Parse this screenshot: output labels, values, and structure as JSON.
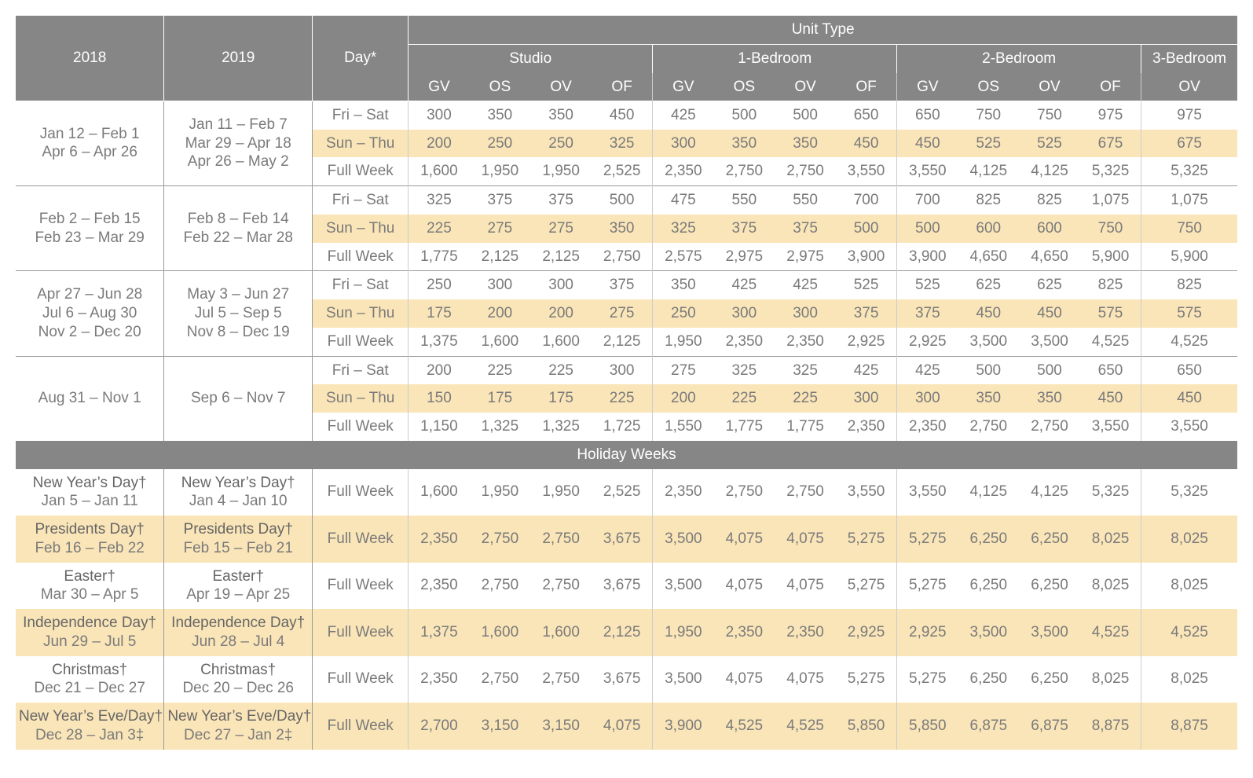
{
  "header": {
    "years": [
      "2018",
      "2019"
    ],
    "day_label": "Day*",
    "unit_type_label": "Unit Type",
    "unit_groups": [
      "Studio",
      "1-Bedroom",
      "2-Bedroom",
      "3-Bedroom"
    ],
    "view_codes": [
      "GV",
      "OS",
      "OV",
      "OF"
    ],
    "view_code_3br": "OV"
  },
  "day_labels": {
    "fri_sat": "Fri – Sat",
    "sun_thu": "Sun – Thu",
    "full_week": "Full Week"
  },
  "seasons": [
    {
      "dates_2018": [
        "Jan 12 – Feb 1",
        "Apr 6 – Apr 26"
      ],
      "dates_2019": [
        "Jan 11 – Feb 7",
        "Mar 29 – Apr 18",
        "Apr 26 – May 2"
      ],
      "rows": [
        {
          "day": "fri_sat",
          "v": [
            "300",
            "350",
            "350",
            "450",
            "425",
            "500",
            "500",
            "650",
            "650",
            "750",
            "750",
            "975",
            "975"
          ]
        },
        {
          "day": "sun_thu",
          "hl": true,
          "v": [
            "200",
            "250",
            "250",
            "325",
            "300",
            "350",
            "350",
            "450",
            "450",
            "525",
            "525",
            "675",
            "675"
          ]
        },
        {
          "day": "full_week",
          "v": [
            "1,600",
            "1,950",
            "1,950",
            "2,525",
            "2,350",
            "2,750",
            "2,750",
            "3,550",
            "3,550",
            "4,125",
            "4,125",
            "5,325",
            "5,325"
          ]
        }
      ]
    },
    {
      "dates_2018": [
        "Feb 2 – Feb 15",
        "Feb 23 – Mar 29"
      ],
      "dates_2019": [
        "Feb 8 – Feb 14",
        "Feb 22 – Mar 28"
      ],
      "rows": [
        {
          "day": "fri_sat",
          "v": [
            "325",
            "375",
            "375",
            "500",
            "475",
            "550",
            "550",
            "700",
            "700",
            "825",
            "825",
            "1,075",
            "1,075"
          ]
        },
        {
          "day": "sun_thu",
          "hl": true,
          "v": [
            "225",
            "275",
            "275",
            "350",
            "325",
            "375",
            "375",
            "500",
            "500",
            "600",
            "600",
            "750",
            "750"
          ]
        },
        {
          "day": "full_week",
          "v": [
            "1,775",
            "2,125",
            "2,125",
            "2,750",
            "2,575",
            "2,975",
            "2,975",
            "3,900",
            "3,900",
            "4,650",
            "4,650",
            "5,900",
            "5,900"
          ]
        }
      ]
    },
    {
      "dates_2018": [
        "Apr 27 – Jun 28",
        "Jul 6 – Aug 30",
        "Nov 2 – Dec 20"
      ],
      "dates_2019": [
        "May 3 – Jun 27",
        "Jul 5 – Sep 5",
        "Nov 8 – Dec 19"
      ],
      "rows": [
        {
          "day": "fri_sat",
          "v": [
            "250",
            "300",
            "300",
            "375",
            "350",
            "425",
            "425",
            "525",
            "525",
            "625",
            "625",
            "825",
            "825"
          ]
        },
        {
          "day": "sun_thu",
          "hl": true,
          "v": [
            "175",
            "200",
            "200",
            "275",
            "250",
            "300",
            "300",
            "375",
            "375",
            "450",
            "450",
            "575",
            "575"
          ]
        },
        {
          "day": "full_week",
          "v": [
            "1,375",
            "1,600",
            "1,600",
            "2,125",
            "1,950",
            "2,350",
            "2,350",
            "2,925",
            "2,925",
            "3,500",
            "3,500",
            "4,525",
            "4,525"
          ]
        }
      ]
    },
    {
      "dates_2018": [
        "Aug 31 – Nov 1"
      ],
      "dates_2019": [
        "Sep 6 – Nov 7"
      ],
      "rows": [
        {
          "day": "fri_sat",
          "v": [
            "200",
            "225",
            "225",
            "300",
            "275",
            "325",
            "325",
            "425",
            "425",
            "500",
            "500",
            "650",
            "650"
          ]
        },
        {
          "day": "sun_thu",
          "hl": true,
          "v": [
            "150",
            "175",
            "175",
            "225",
            "200",
            "225",
            "225",
            "300",
            "300",
            "350",
            "350",
            "450",
            "450"
          ]
        },
        {
          "day": "full_week",
          "v": [
            "1,150",
            "1,325",
            "1,325",
            "1,725",
            "1,550",
            "1,775",
            "1,775",
            "2,350",
            "2,350",
            "2,750",
            "2,750",
            "3,550",
            "3,550"
          ]
        }
      ]
    }
  ],
  "holiday_label": "Holiday Weeks",
  "holidays": [
    {
      "hl": false,
      "name_2018": "New Year’s Day†",
      "dates_2018": "Jan 5 – Jan 11",
      "name_2019": "New Year’s Day†",
      "dates_2019": "Jan 4 – Jan 10",
      "v": [
        "1,600",
        "1,950",
        "1,950",
        "2,525",
        "2,350",
        "2,750",
        "2,750",
        "3,550",
        "3,550",
        "4,125",
        "4,125",
        "5,325",
        "5,325"
      ]
    },
    {
      "hl": true,
      "name_2018": "Presidents Day†",
      "dates_2018": "Feb 16 – Feb 22",
      "name_2019": "Presidents Day†",
      "dates_2019": "Feb 15 – Feb 21",
      "v": [
        "2,350",
        "2,750",
        "2,750",
        "3,675",
        "3,500",
        "4,075",
        "4,075",
        "5,275",
        "5,275",
        "6,250",
        "6,250",
        "8,025",
        "8,025"
      ]
    },
    {
      "hl": false,
      "name_2018": "Easter†",
      "dates_2018": "Mar 30 – Apr 5",
      "name_2019": "Easter†",
      "dates_2019": "Apr 19 – Apr 25",
      "v": [
        "2,350",
        "2,750",
        "2,750",
        "3,675",
        "3,500",
        "4,075",
        "4,075",
        "5,275",
        "5,275",
        "6,250",
        "6,250",
        "8,025",
        "8,025"
      ]
    },
    {
      "hl": true,
      "name_2018": "Independence Day†",
      "dates_2018": "Jun 29 – Jul 5",
      "name_2019": "Independence Day†",
      "dates_2019": "Jun 28 – Jul 4",
      "v": [
        "1,375",
        "1,600",
        "1,600",
        "2,125",
        "1,950",
        "2,350",
        "2,350",
        "2,925",
        "2,925",
        "3,500",
        "3,500",
        "4,525",
        "4,525"
      ]
    },
    {
      "hl": false,
      "name_2018": "Christmas†",
      "dates_2018": "Dec 21 – Dec 27",
      "name_2019": "Christmas†",
      "dates_2019": "Dec 20 – Dec 26",
      "v": [
        "2,350",
        "2,750",
        "2,750",
        "3,675",
        "3,500",
        "4,075",
        "4,075",
        "5,275",
        "5,275",
        "6,250",
        "6,250",
        "8,025",
        "8,025"
      ]
    },
    {
      "hl": true,
      "name_2018": "New Year’s Eve/Day†",
      "dates_2018": "Dec 28 – Jan 3‡",
      "name_2019": "New Year’s Eve/Day†",
      "dates_2019": "Dec 27 – Jan 2‡",
      "v": [
        "2,700",
        "3,150",
        "3,150",
        "4,075",
        "3,900",
        "4,525",
        "4,525",
        "5,850",
        "5,850",
        "6,875",
        "6,875",
        "8,875",
        "8,875"
      ]
    }
  ],
  "style": {
    "header_bg": "#868686",
    "highlight_bg": "#fae5b8",
    "text_color": "#7a7a7a",
    "grid_color": "#999999"
  }
}
